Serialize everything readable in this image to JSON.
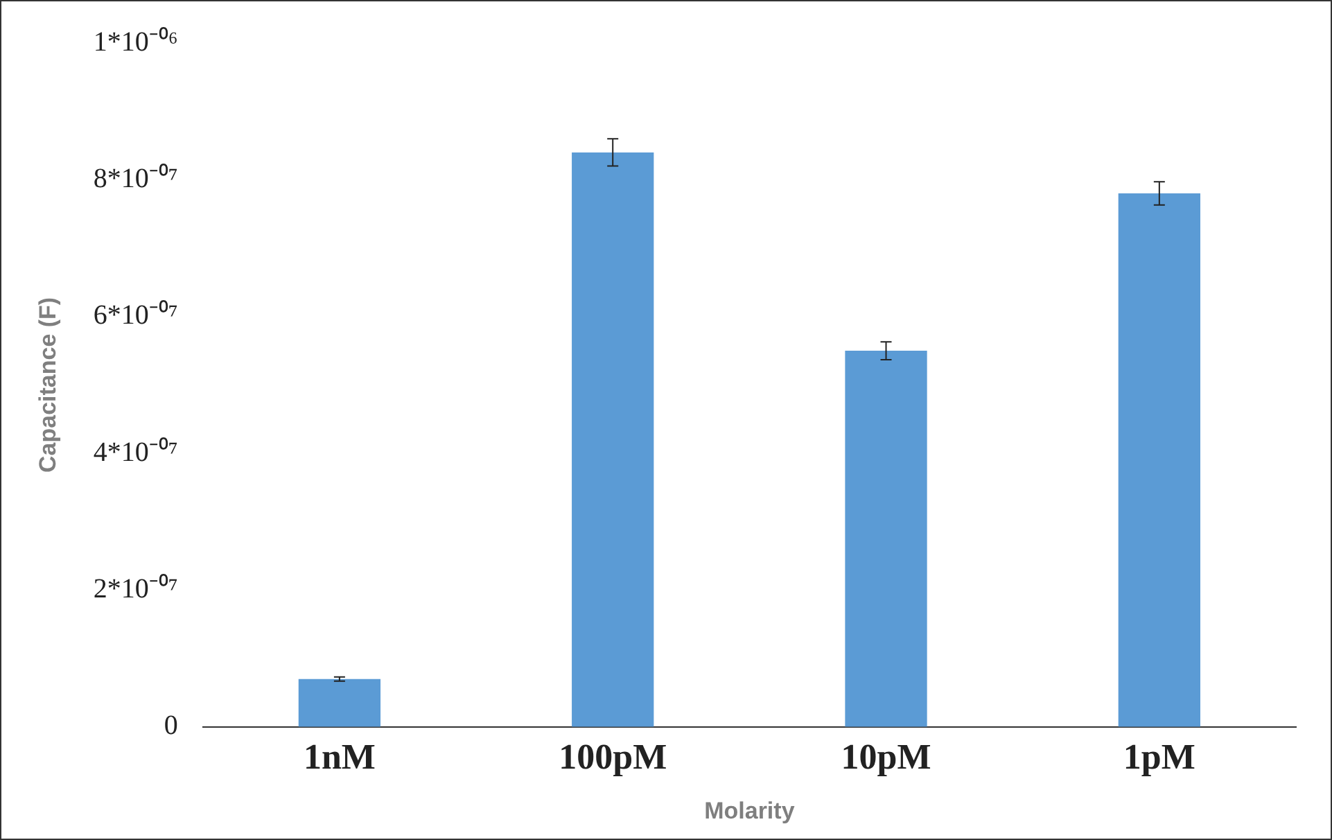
{
  "chart_data": {
    "type": "bar",
    "xlabel": "Molarity",
    "ylabel": "Capacitance (F)",
    "categories": [
      "1nM",
      "100pM",
      "10pM",
      "1pM"
    ],
    "values": [
      7e-08,
      8.4e-07,
      5.5e-07,
      7.8e-07
    ],
    "errors": [
      3e-09,
      2e-08,
      1.3e-08,
      1.7e-08
    ],
    "color": "#5b9bd5",
    "ylim": [
      0,
      1e-06
    ],
    "yticks": [
      0,
      {
        "value": 2e-07,
        "label": "2*10⁻⁰⁷"
      },
      {
        "value": 4e-07,
        "label": "4*10⁻⁰⁷"
      },
      {
        "value": 6e-07,
        "label": "6*10⁻⁰⁷"
      },
      {
        "value": 8e-07,
        "label": "8*10⁻⁰⁷"
      },
      {
        "value": 1e-06,
        "label": "1*10⁻⁰⁶"
      }
    ],
    "grid": false,
    "legend": false
  }
}
